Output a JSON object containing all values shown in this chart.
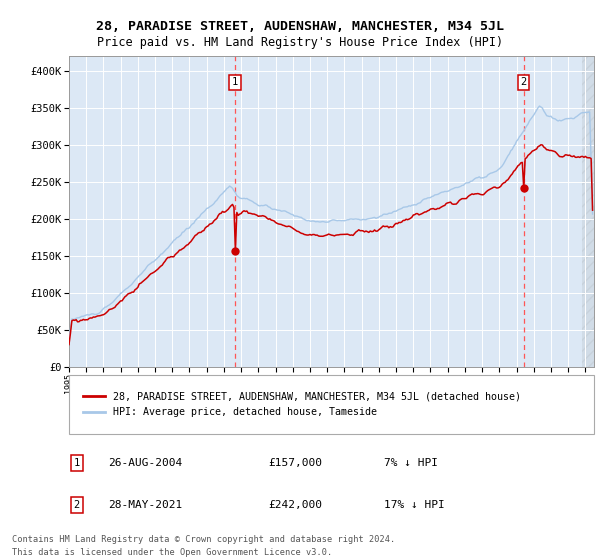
{
  "title": "28, PARADISE STREET, AUDENSHAW, MANCHESTER, M34 5JL",
  "subtitle": "Price paid vs. HM Land Registry's House Price Index (HPI)",
  "ylim": [
    0,
    420000
  ],
  "yticks": [
    0,
    50000,
    100000,
    150000,
    200000,
    250000,
    300000,
    350000,
    400000
  ],
  "hpi_color": "#a8c8e8",
  "price_color": "#cc0000",
  "bg_color": "#dce8f5",
  "marker_color": "#cc0000",
  "vline_color": "#ff5555",
  "annotation1": {
    "date": "26-AUG-2004",
    "price": "£157,000",
    "hpi_diff": "7% ↓ HPI",
    "label": "1",
    "year": 2004.65
  },
  "annotation2": {
    "date": "28-MAY-2021",
    "price": "£242,000",
    "hpi_diff": "17% ↓ HPI",
    "label": "2",
    "year": 2021.42
  },
  "legend_line1": "28, PARADISE STREET, AUDENSHAW, MANCHESTER, M34 5JL (detached house)",
  "legend_line2": "HPI: Average price, detached house, Tameside",
  "footer": "Contains HM Land Registry data © Crown copyright and database right 2024.\nThis data is licensed under the Open Government Licence v3.0.",
  "marker1_value": 157000,
  "marker2_value": 242000,
  "xstart": 1995.0,
  "xend": 2025.5
}
